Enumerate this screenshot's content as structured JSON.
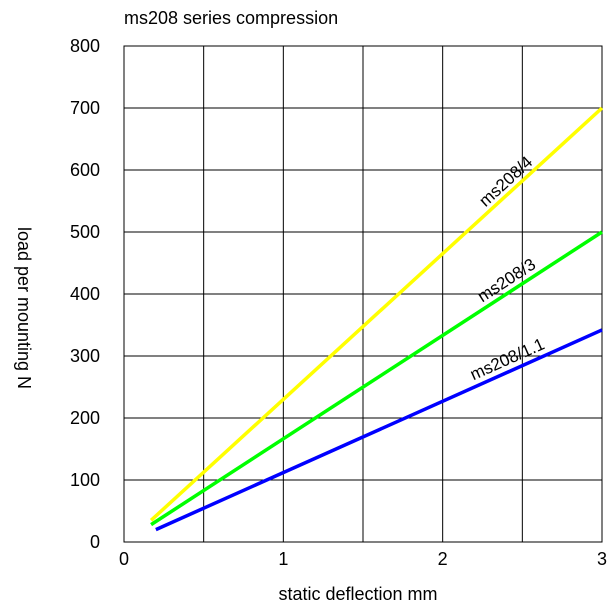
{
  "chart_data": {
    "type": "line",
    "title": "ms208 series compression",
    "xlabel": "static deflection mm",
    "ylabel": "load per mounting N",
    "xlim": [
      0,
      3
    ],
    "ylim": [
      0,
      800
    ],
    "grid": true,
    "x_ticks": [
      "0",
      "0.5",
      "1",
      "1.5",
      "2",
      "2.5",
      "3"
    ],
    "x_tick_labels_shown": [
      "0",
      "1",
      "2",
      "3"
    ],
    "y_ticks": [
      "0",
      "100",
      "200",
      "300",
      "400",
      "500",
      "600",
      "700",
      "800"
    ],
    "series": [
      {
        "name": "ms208/4",
        "color": "#ffff00",
        "x": [
          0.17,
          3.0
        ],
        "y": [
          35,
          700
        ]
      },
      {
        "name": "ms208/3",
        "color": "#00ff00",
        "x": [
          0.17,
          3.0
        ],
        "y": [
          28,
          500
        ]
      },
      {
        "name": "ms208/1.1",
        "color": "#0000ff",
        "x": [
          0.2,
          3.0
        ],
        "y": [
          20,
          342
        ]
      }
    ]
  }
}
